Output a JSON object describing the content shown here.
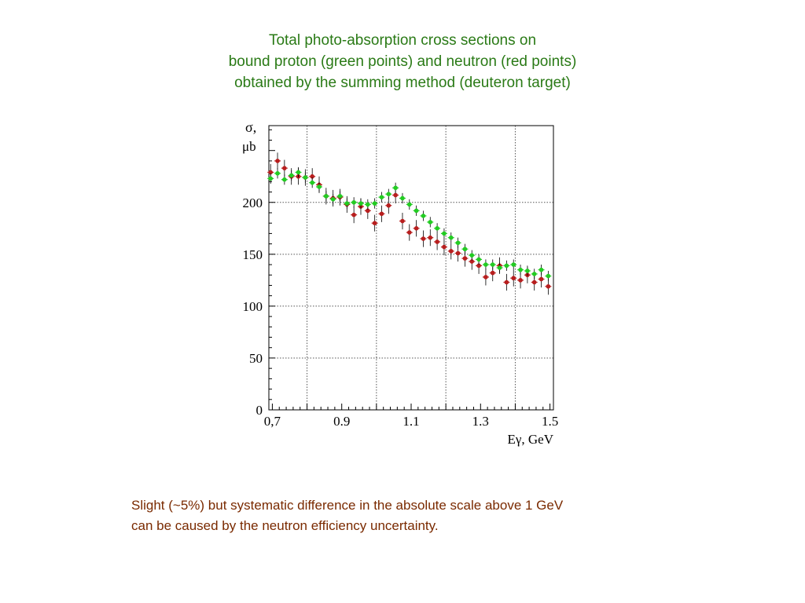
{
  "title_lines": [
    "Total photo-absorption cross sections on",
    "bound proton (green points) and neutron (red points)",
    "obtained by the summing method (deuteron target)"
  ],
  "caption_lines": [
    "Slight (~5%) but systematic difference in the absolute scale above 1 GeV",
    "can be caused by the neutron efficiency uncertainty."
  ],
  "colors": {
    "title": "#2a7a16",
    "caption": "#7a2a00",
    "proton": "#22cc22",
    "neutron": "#b81e1e"
  },
  "chart_data": {
    "type": "scatter",
    "title": "",
    "xlabel": "Eγ, GeV",
    "ylabel_lines": [
      "σ,",
      "μb"
    ],
    "xlim": [
      0.69,
      1.51
    ],
    "ylim": [
      0,
      274
    ],
    "x_ticks": [
      {
        "value": 0.7,
        "label": "0,7"
      },
      {
        "value": 0.9,
        "label": "0.9"
      },
      {
        "value": 1.1,
        "label": "1.1"
      },
      {
        "value": 1.3,
        "label": "1.3"
      },
      {
        "value": 1.5,
        "label": "1.5"
      }
    ],
    "y_ticks": [
      {
        "value": 0,
        "label": "0"
      },
      {
        "value": 50,
        "label": "50"
      },
      {
        "value": 100,
        "label": "100"
      },
      {
        "value": 150,
        "label": "150"
      },
      {
        "value": 200,
        "label": "200"
      }
    ],
    "x_grid": [
      0.8,
      1.0,
      1.2,
      1.4
    ],
    "y_grid": [
      50,
      100,
      150,
      200
    ],
    "grid": true,
    "series": [
      {
        "name": "bound proton (green points)",
        "color": "#22cc22",
        "points": [
          {
            "x": 0.695,
            "y": 223,
            "err": 5
          },
          {
            "x": 0.715,
            "y": 228,
            "err": 5
          },
          {
            "x": 0.735,
            "y": 222,
            "err": 5
          },
          {
            "x": 0.755,
            "y": 226,
            "err": 5
          },
          {
            "x": 0.775,
            "y": 229,
            "err": 5
          },
          {
            "x": 0.795,
            "y": 224,
            "err": 5
          },
          {
            "x": 0.815,
            "y": 219,
            "err": 5
          },
          {
            "x": 0.835,
            "y": 215,
            "err": 5
          },
          {
            "x": 0.855,
            "y": 206,
            "err": 5
          },
          {
            "x": 0.875,
            "y": 203,
            "err": 5
          },
          {
            "x": 0.895,
            "y": 206,
            "err": 5
          },
          {
            "x": 0.915,
            "y": 199,
            "err": 5
          },
          {
            "x": 0.935,
            "y": 200,
            "err": 5
          },
          {
            "x": 0.955,
            "y": 199,
            "err": 5
          },
          {
            "x": 0.975,
            "y": 198,
            "err": 5
          },
          {
            "x": 0.995,
            "y": 199,
            "err": 5
          },
          {
            "x": 1.015,
            "y": 205,
            "err": 5
          },
          {
            "x": 1.035,
            "y": 208,
            "err": 5
          },
          {
            "x": 1.055,
            "y": 214,
            "err": 5
          },
          {
            "x": 1.075,
            "y": 204,
            "err": 5
          },
          {
            "x": 1.095,
            "y": 198,
            "err": 5
          },
          {
            "x": 1.115,
            "y": 192,
            "err": 5
          },
          {
            "x": 1.135,
            "y": 187,
            "err": 5
          },
          {
            "x": 1.155,
            "y": 181,
            "err": 5
          },
          {
            "x": 1.175,
            "y": 175,
            "err": 5
          },
          {
            "x": 1.195,
            "y": 170,
            "err": 5
          },
          {
            "x": 1.215,
            "y": 166,
            "err": 5
          },
          {
            "x": 1.235,
            "y": 161,
            "err": 5
          },
          {
            "x": 1.255,
            "y": 155,
            "err": 5
          },
          {
            "x": 1.275,
            "y": 149,
            "err": 5
          },
          {
            "x": 1.295,
            "y": 145,
            "err": 5
          },
          {
            "x": 1.315,
            "y": 140,
            "err": 5
          },
          {
            "x": 1.335,
            "y": 140,
            "err": 5
          },
          {
            "x": 1.355,
            "y": 137,
            "err": 5
          },
          {
            "x": 1.375,
            "y": 139,
            "err": 5
          },
          {
            "x": 1.395,
            "y": 140,
            "err": 5
          },
          {
            "x": 1.415,
            "y": 135,
            "err": 5
          },
          {
            "x": 1.435,
            "y": 134,
            "err": 5
          },
          {
            "x": 1.455,
            "y": 131,
            "err": 5
          },
          {
            "x": 1.475,
            "y": 135,
            "err": 5
          },
          {
            "x": 1.495,
            "y": 129,
            "err": 5
          }
        ]
      },
      {
        "name": "neutron (red points)",
        "color": "#b81e1e",
        "points": [
          {
            "x": 0.695,
            "y": 229,
            "err": 8
          },
          {
            "x": 0.715,
            "y": 240,
            "err": 8
          },
          {
            "x": 0.735,
            "y": 233,
            "err": 8
          },
          {
            "x": 0.755,
            "y": 225,
            "err": 8
          },
          {
            "x": 0.775,
            "y": 225,
            "err": 8
          },
          {
            "x": 0.795,
            "y": 224,
            "err": 8
          },
          {
            "x": 0.815,
            "y": 225,
            "err": 8
          },
          {
            "x": 0.835,
            "y": 217,
            "err": 8
          },
          {
            "x": 0.855,
            "y": 206,
            "err": 8
          },
          {
            "x": 0.875,
            "y": 204,
            "err": 8
          },
          {
            "x": 0.895,
            "y": 205,
            "err": 8
          },
          {
            "x": 0.915,
            "y": 198,
            "err": 8
          },
          {
            "x": 0.935,
            "y": 188,
            "err": 8
          },
          {
            "x": 0.955,
            "y": 196,
            "err": 8
          },
          {
            "x": 0.975,
            "y": 192,
            "err": 8
          },
          {
            "x": 0.995,
            "y": 180,
            "err": 8
          },
          {
            "x": 1.015,
            "y": 189,
            "err": 8
          },
          {
            "x": 1.035,
            "y": 197,
            "err": 8
          },
          {
            "x": 1.055,
            "y": 207,
            "err": 8
          },
          {
            "x": 1.075,
            "y": 182,
            "err": 8
          },
          {
            "x": 1.095,
            "y": 171,
            "err": 8
          },
          {
            "x": 1.115,
            "y": 175,
            "err": 8
          },
          {
            "x": 1.135,
            "y": 165,
            "err": 8
          },
          {
            "x": 1.155,
            "y": 166,
            "err": 8
          },
          {
            "x": 1.175,
            "y": 162,
            "err": 8
          },
          {
            "x": 1.195,
            "y": 157,
            "err": 8
          },
          {
            "x": 1.215,
            "y": 153,
            "err": 8
          },
          {
            "x": 1.235,
            "y": 151,
            "err": 8
          },
          {
            "x": 1.255,
            "y": 146,
            "err": 8
          },
          {
            "x": 1.275,
            "y": 143,
            "err": 8
          },
          {
            "x": 1.295,
            "y": 139,
            "err": 8
          },
          {
            "x": 1.315,
            "y": 128,
            "err": 8
          },
          {
            "x": 1.335,
            "y": 132,
            "err": 8
          },
          {
            "x": 1.355,
            "y": 139,
            "err": 8
          },
          {
            "x": 1.375,
            "y": 123,
            "err": 8
          },
          {
            "x": 1.395,
            "y": 127,
            "err": 8
          },
          {
            "x": 1.415,
            "y": 125,
            "err": 8
          },
          {
            "x": 1.435,
            "y": 130,
            "err": 8
          },
          {
            "x": 1.455,
            "y": 123,
            "err": 8
          },
          {
            "x": 1.475,
            "y": 126,
            "err": 8
          },
          {
            "x": 1.495,
            "y": 119,
            "err": 8
          }
        ]
      }
    ]
  }
}
